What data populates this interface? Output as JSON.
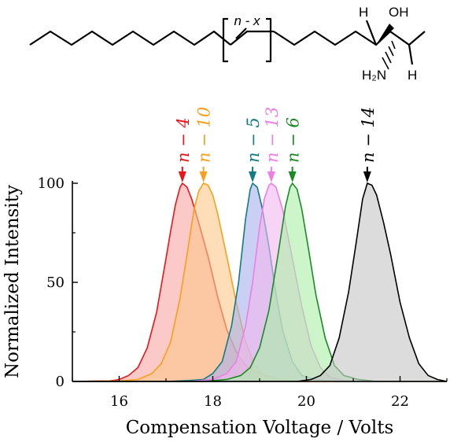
{
  "molecule": {
    "chain_bracket_label": "n - x",
    "oh_label": "OH",
    "h_top_label": "H",
    "nh2_label": "H₂N",
    "h_bottom_label": "H"
  },
  "chart_data": {
    "type": "area",
    "title": "",
    "xlabel": "Compensation Voltage / Volts",
    "ylabel": "Normalized Intensity",
    "xlim": [
      15,
      23
    ],
    "ylim": [
      0,
      100
    ],
    "xticks": [
      16,
      18,
      20,
      22
    ],
    "yticks": [
      0,
      50,
      100
    ],
    "grid": false,
    "legend": "none",
    "series": [
      {
        "name": "n − 4",
        "color": "#e8151a",
        "fill": "#f6a5a3",
        "peak": 17.35,
        "points": [
          [
            15.0,
            0
          ],
          [
            15.8,
            0.3
          ],
          [
            16.0,
            1
          ],
          [
            16.2,
            3
          ],
          [
            16.4,
            7
          ],
          [
            16.6,
            17
          ],
          [
            16.8,
            35
          ],
          [
            17.0,
            62
          ],
          [
            17.1,
            76
          ],
          [
            17.2,
            89
          ],
          [
            17.3,
            98
          ],
          [
            17.35,
            100
          ],
          [
            17.45,
            98
          ],
          [
            17.55,
            92
          ],
          [
            17.7,
            80
          ],
          [
            17.9,
            63
          ],
          [
            18.1,
            43
          ],
          [
            18.3,
            26
          ],
          [
            18.5,
            15
          ],
          [
            18.7,
            8
          ],
          [
            19.0,
            4
          ],
          [
            19.4,
            1
          ],
          [
            19.8,
            0
          ],
          [
            23.0,
            0
          ]
        ]
      },
      {
        "name": "n − 10",
        "color": "#f6a01e",
        "fill": "#fbc88a",
        "peak": 17.8,
        "points": [
          [
            15.0,
            0
          ],
          [
            16.0,
            0.3
          ],
          [
            16.4,
            1
          ],
          [
            16.7,
            4
          ],
          [
            16.9,
            9
          ],
          [
            17.1,
            20
          ],
          [
            17.3,
            42
          ],
          [
            17.45,
            64
          ],
          [
            17.6,
            87
          ],
          [
            17.7,
            96
          ],
          [
            17.8,
            100
          ],
          [
            17.9,
            99
          ],
          [
            18.0,
            94
          ],
          [
            18.1,
            85
          ],
          [
            18.3,
            63
          ],
          [
            18.5,
            40
          ],
          [
            18.7,
            20
          ],
          [
            18.9,
            8
          ],
          [
            19.1,
            3
          ],
          [
            19.4,
            1
          ],
          [
            19.8,
            0
          ],
          [
            23.0,
            0
          ]
        ]
      },
      {
        "name": "n − 5",
        "color": "#137b84",
        "fill": "#a7b0ec",
        "peak": 18.85,
        "points": [
          [
            15.0,
            0
          ],
          [
            17.0,
            0
          ],
          [
            17.5,
            0.5
          ],
          [
            17.8,
            1
          ],
          [
            18.0,
            4
          ],
          [
            18.2,
            10
          ],
          [
            18.4,
            28
          ],
          [
            18.55,
            50
          ],
          [
            18.7,
            82
          ],
          [
            18.8,
            97
          ],
          [
            18.85,
            100
          ],
          [
            18.95,
            98
          ],
          [
            19.05,
            88
          ],
          [
            19.2,
            68
          ],
          [
            19.35,
            44
          ],
          [
            19.5,
            25
          ],
          [
            19.7,
            10
          ],
          [
            19.9,
            3
          ],
          [
            20.2,
            1
          ],
          [
            20.6,
            0
          ],
          [
            23.0,
            0
          ]
        ]
      },
      {
        "name": "n − 13",
        "color": "#ec7ee5",
        "fill": "#f2b7ef",
        "peak": 19.25,
        "points": [
          [
            15.0,
            0
          ],
          [
            17.5,
            0
          ],
          [
            18.0,
            1
          ],
          [
            18.3,
            4
          ],
          [
            18.5,
            10
          ],
          [
            18.7,
            28
          ],
          [
            18.85,
            50
          ],
          [
            19.0,
            78
          ],
          [
            19.1,
            92
          ],
          [
            19.2,
            99
          ],
          [
            19.25,
            100
          ],
          [
            19.35,
            98
          ],
          [
            19.5,
            86
          ],
          [
            19.7,
            62
          ],
          [
            19.9,
            38
          ],
          [
            20.1,
            18
          ],
          [
            20.3,
            7
          ],
          [
            20.5,
            2
          ],
          [
            20.8,
            0.5
          ],
          [
            21.2,
            0
          ],
          [
            23.0,
            0
          ]
        ]
      },
      {
        "name": "n − 6",
        "color": "#1a8a26",
        "fill": "#aaf0a6",
        "peak": 19.7,
        "points": [
          [
            15.0,
            0
          ],
          [
            17.8,
            0
          ],
          [
            18.3,
            1
          ],
          [
            18.6,
            3
          ],
          [
            18.8,
            7
          ],
          [
            19.0,
            17
          ],
          [
            19.2,
            36
          ],
          [
            19.4,
            65
          ],
          [
            19.55,
            88
          ],
          [
            19.65,
            98
          ],
          [
            19.7,
            100
          ],
          [
            19.8,
            97
          ],
          [
            19.9,
            87
          ],
          [
            20.05,
            66
          ],
          [
            20.2,
            44
          ],
          [
            20.4,
            22
          ],
          [
            20.6,
            8
          ],
          [
            20.8,
            3
          ],
          [
            21.1,
            1
          ],
          [
            21.5,
            0
          ],
          [
            23.0,
            0
          ]
        ]
      },
      {
        "name": "n − 14",
        "color": "#000000",
        "fill": "#c4c4c4",
        "peak": 21.3,
        "points": [
          [
            15.0,
            0
          ],
          [
            19.8,
            0
          ],
          [
            20.1,
            1
          ],
          [
            20.3,
            3
          ],
          [
            20.5,
            8
          ],
          [
            20.7,
            22
          ],
          [
            20.9,
            45
          ],
          [
            21.05,
            68
          ],
          [
            21.2,
            92
          ],
          [
            21.3,
            100
          ],
          [
            21.4,
            99
          ],
          [
            21.5,
            94
          ],
          [
            21.65,
            80
          ],
          [
            21.8,
            64
          ],
          [
            22.0,
            40
          ],
          [
            22.2,
            22
          ],
          [
            22.4,
            9
          ],
          [
            22.6,
            3
          ],
          [
            22.8,
            1
          ],
          [
            23.0,
            0
          ]
        ]
      }
    ]
  }
}
